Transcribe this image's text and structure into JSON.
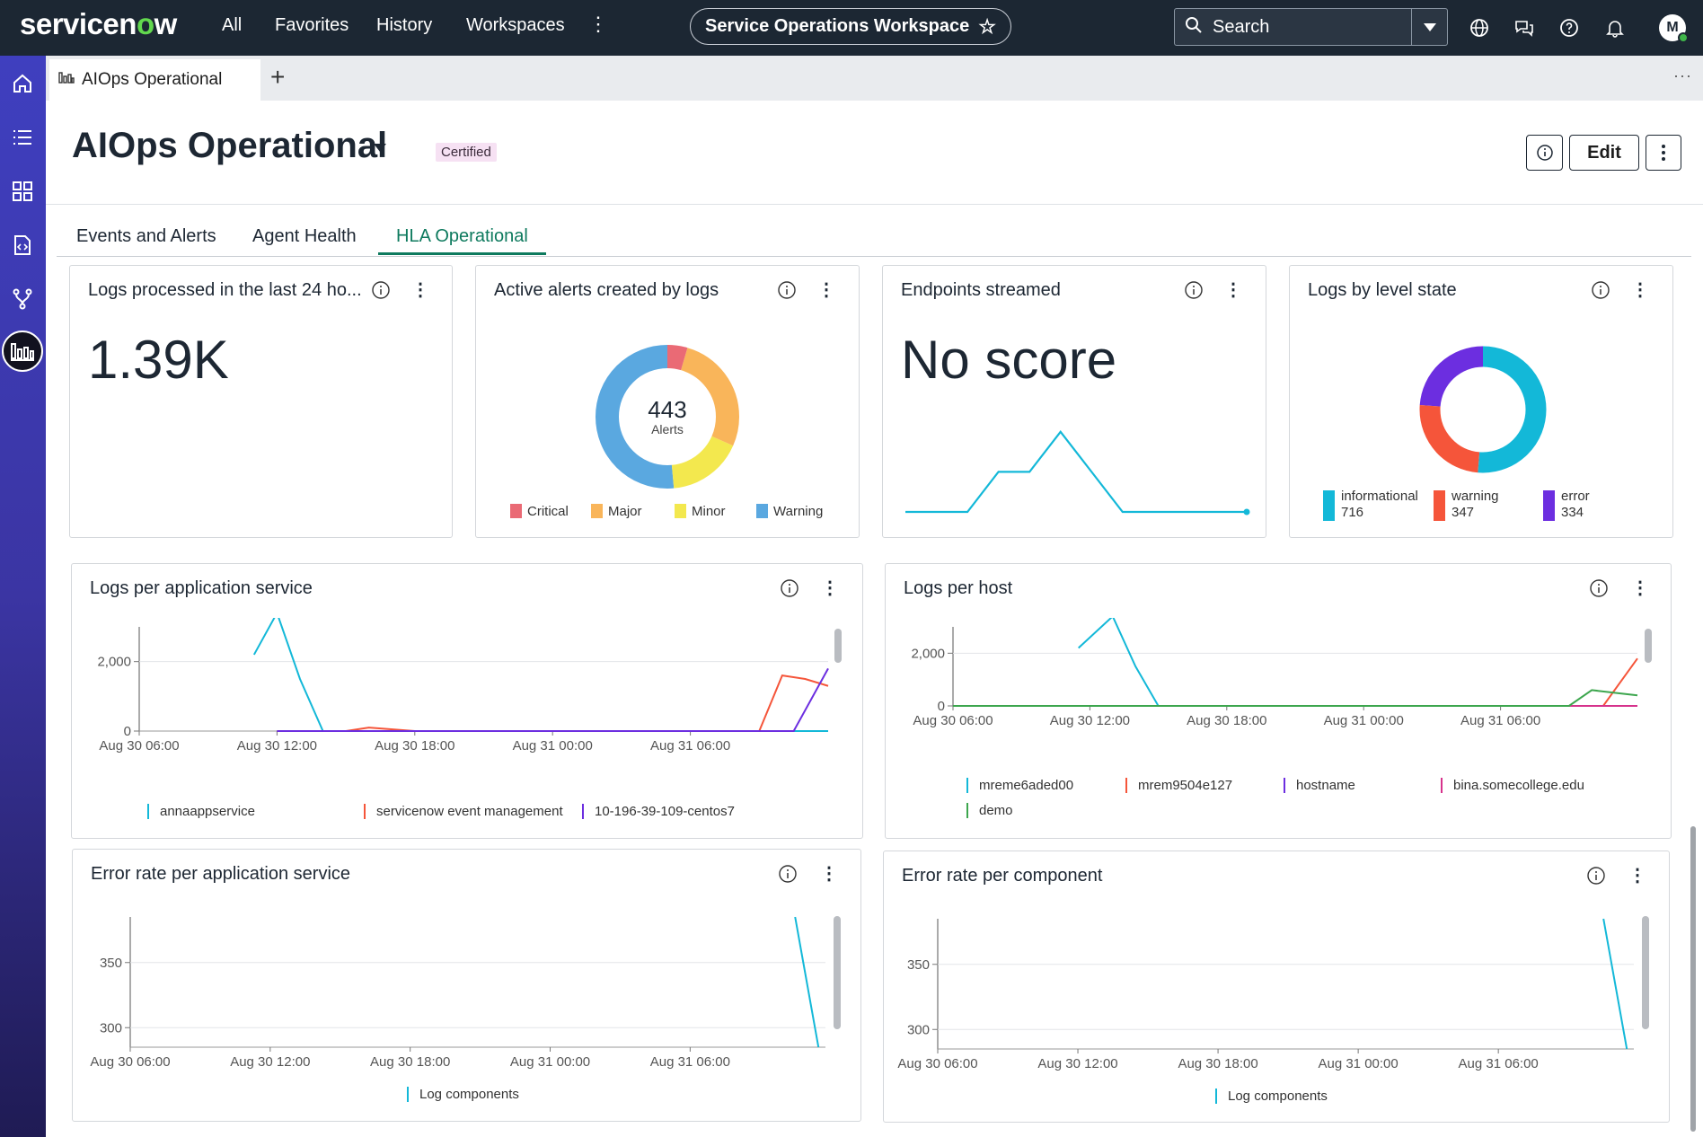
{
  "topbar": {
    "logo_text": "servicenow",
    "nav": [
      "All",
      "Favorites",
      "History",
      "Workspaces"
    ],
    "more": "⋮",
    "workspace": "Service Operations Workspace",
    "search_label": "Search",
    "avatar": "M"
  },
  "tabstrip": {
    "tab_label": "AIOps Operational",
    "add": "+",
    "more": "···"
  },
  "header": {
    "title": "AIOps Operational",
    "badge": "Certified",
    "edit_label": "Edit"
  },
  "tabs": [
    "Events and Alerts",
    "Agent Health",
    "HLA Operational"
  ],
  "cards": {
    "logs24": {
      "title": "Logs processed in the last 24 ho...",
      "value": "1.39K"
    },
    "alerts": {
      "title": "Active alerts created by logs",
      "center_value": "443",
      "center_label": "Alerts",
      "legend": [
        "Critical",
        "Major",
        "Minor",
        "Warning"
      ],
      "colors": [
        "#ea6a75",
        "#f9b55a",
        "#f3e84e",
        "#5aa8e0"
      ]
    },
    "endpoints": {
      "title": "Endpoints streamed",
      "value": "No score"
    },
    "levels": {
      "title": "Logs by level state",
      "items": [
        {
          "label": "informational",
          "value": "716",
          "color": "#13b8d8"
        },
        {
          "label": "warning",
          "value": "347",
          "color": "#f5553a"
        },
        {
          "label": "error",
          "value": "334",
          "color": "#6c2ee0"
        }
      ]
    },
    "logs_app": {
      "title": "Logs per application service",
      "legend": [
        "annaappservice",
        "servicenow event management",
        "10-196-39-109-centos7"
      ],
      "colors": [
        "#13b8d8",
        "#f5553a",
        "#6c2ee0"
      ]
    },
    "logs_host": {
      "title": "Logs per host",
      "legend": [
        "mreme6aded00",
        "mrem9504e127",
        "hostname",
        "bina.somecollege.edu",
        "demo"
      ],
      "colors": [
        "#13b8d8",
        "#f5553a",
        "#6c2ee0",
        "#d6338c",
        "#3da64e"
      ]
    },
    "err_app": {
      "title": "Error rate per application service",
      "legend": [
        "Log components"
      ]
    },
    "err_comp": {
      "title": "Error rate per component",
      "legend": [
        "Log components"
      ]
    }
  },
  "chart_data": [
    {
      "type": "pie",
      "categories": [
        "Critical",
        "Major",
        "Minor",
        "Warning"
      ],
      "values": [
        20,
        120,
        75,
        228
      ],
      "title": "Active alerts created by logs"
    },
    {
      "type": "line",
      "title": "Endpoints streamed",
      "x": [
        0,
        1,
        2,
        3,
        4,
        5,
        6,
        7,
        8,
        9,
        10,
        11
      ],
      "values": [
        1,
        1,
        1,
        2,
        2,
        3,
        2,
        1,
        1,
        1,
        1,
        1
      ]
    },
    {
      "type": "pie",
      "categories": [
        "informational",
        "warning",
        "error"
      ],
      "values": [
        716,
        347,
        334
      ],
      "title": "Logs by level state"
    },
    {
      "type": "line",
      "title": "Logs per application service",
      "x_ticks": [
        "Aug 30 06:00",
        "Aug 30 12:00",
        "Aug 30 18:00",
        "Aug 31 00:00",
        "Aug 31 06:00"
      ],
      "y_ticks": [
        "0",
        "2,000"
      ],
      "ylim": [
        0,
        3000
      ],
      "x_range_hours": [
        0,
        30
      ],
      "series": [
        {
          "name": "annaappservice",
          "x": [
            5,
            6,
            7,
            8,
            30
          ],
          "values": [
            2200,
            3400,
            1500,
            0,
            0
          ]
        },
        {
          "name": "servicenow event management",
          "x": [
            6,
            9,
            10,
            12,
            27,
            28,
            29,
            30
          ],
          "values": [
            0,
            0,
            100,
            0,
            0,
            1600,
            1500,
            1300
          ]
        },
        {
          "name": "10-196-39-109-centos7",
          "x": [
            6,
            28.5,
            30
          ],
          "values": [
            0,
            0,
            1800
          ]
        }
      ]
    },
    {
      "type": "line",
      "title": "Logs per host",
      "x_ticks": [
        "Aug 30 06:00",
        "Aug 30 12:00",
        "Aug 30 18:00",
        "Aug 31 00:00",
        "Aug 31 06:00"
      ],
      "y_ticks": [
        "0",
        "2,000"
      ],
      "ylim": [
        0,
        3000
      ],
      "x_range_hours": [
        0,
        30
      ],
      "series": [
        {
          "name": "mreme6aded00",
          "x": [
            5.5,
            7,
            8,
            9,
            30
          ],
          "values": [
            2200,
            3400,
            1500,
            0,
            0
          ]
        },
        {
          "name": "mrem9504e127",
          "x": [
            0,
            28.5,
            30
          ],
          "values": [
            0,
            0,
            1800
          ]
        },
        {
          "name": "hostname",
          "x": [
            0,
            30
          ],
          "values": [
            0,
            0
          ]
        },
        {
          "name": "bina.somecollege.edu",
          "x": [
            0,
            30
          ],
          "values": [
            0,
            0
          ]
        },
        {
          "name": "demo",
          "x": [
            0,
            27,
            28,
            29,
            30
          ],
          "values": [
            0,
            0,
            600,
            500,
            400
          ]
        }
      ]
    },
    {
      "type": "line",
      "title": "Error rate per application service",
      "x_ticks": [
        "Aug 30 06:00",
        "Aug 30 12:00",
        "Aug 30 18:00",
        "Aug 31 00:00",
        "Aug 31 06:00"
      ],
      "y_ticks": [
        "300",
        "350"
      ],
      "ylim": [
        285,
        385
      ],
      "series": [
        {
          "name": "Log components",
          "x": [
            28.5,
            29.5
          ],
          "values": [
            385,
            285
          ]
        }
      ]
    },
    {
      "type": "line",
      "title": "Error rate per component",
      "x_ticks": [
        "Aug 30 06:00",
        "Aug 30 12:00",
        "Aug 30 18:00",
        "Aug 31 00:00",
        "Aug 31 06:00"
      ],
      "y_ticks": [
        "300",
        "350"
      ],
      "ylim": [
        285,
        385
      ],
      "series": [
        {
          "name": "Log components",
          "x": [
            28.5,
            29.5
          ],
          "values": [
            385,
            285
          ]
        }
      ]
    }
  ]
}
